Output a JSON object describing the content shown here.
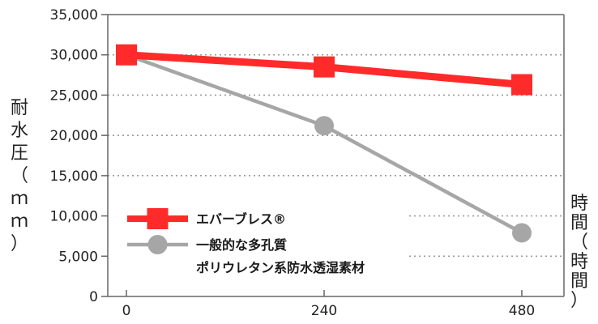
{
  "chart_data": {
    "type": "line",
    "x": [
      0,
      240,
      480
    ],
    "x_tick_labels": [
      "0",
      "240",
      "480"
    ],
    "xlim": [
      0,
      480
    ],
    "ylim": [
      0,
      35000
    ],
    "y_tick_labels": [
      "0",
      "5,000",
      "10,000",
      "15,000",
      "20,000",
      "25,000",
      "30,000",
      "35,000"
    ],
    "ylabel": "耐水圧（ｍｍ）",
    "xlabel": "時間（時間）",
    "grid": "horizontal dotted",
    "legend_position": "bottom-left",
    "series": [
      {
        "name": "エバーブレス®",
        "values": [
          30000,
          28500,
          26300
        ],
        "color": "#ff2a2a",
        "marker": "square"
      },
      {
        "name": "一般的な多孔質ポリウレタン系防水透湿素材",
        "name_lines": [
          "一般的な多孔質",
          "ポリウレタン系防水透湿素材"
        ],
        "values": [
          30000,
          21200,
          7900
        ],
        "color": "#a6a6a6",
        "marker": "circle"
      }
    ]
  }
}
